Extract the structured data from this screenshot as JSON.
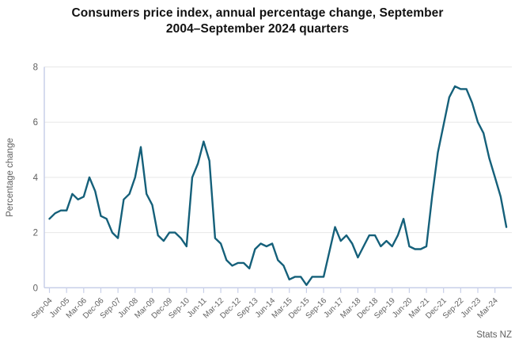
{
  "title": {
    "line1": "Consumers price index, annual percentage change, September",
    "line2": "2004–September 2024 quarters",
    "full": "Consumers price index, annual percentage change, September 2004–September 2024 quarters"
  },
  "source": "Stats NZ",
  "colors": {
    "line": "#15607a",
    "gridline": "#e7e7e7",
    "axis": "#c8cfe8",
    "tick_text": "#606060",
    "title_text": "#111111"
  },
  "chart_data": {
    "type": "line",
    "title": "Consumers price index, annual percentage change, September 2004–September 2024 quarters",
    "xlabel": "",
    "ylabel": "Percentage change",
    "ylim": [
      0,
      8
    ],
    "yticks": [
      0,
      2,
      4,
      6,
      8
    ],
    "grid": "horizontal",
    "legend": "none",
    "x_frequency": "quarterly",
    "x_start": "Sep-04",
    "x_end": "Sep-24",
    "points_per_tick": 3,
    "x_tick_labels": [
      "Sep-04",
      "Jun-05",
      "Mar-06",
      "Dec-06",
      "Sep-07",
      "Jun-08",
      "Mar-09",
      "Dec-09",
      "Sep-10",
      "Jun-11",
      "Mar-12",
      "Dec-12",
      "Sep-13",
      "Jun-14",
      "Mar-15",
      "Dec-15",
      "Sep-16",
      "Jun-17",
      "Mar-18",
      "Dec-18",
      "Sep-19",
      "Jun-20",
      "Mar-21",
      "Dec-21",
      "Sep-22",
      "Jun-23",
      "Mar-24"
    ],
    "values": [
      2.5,
      2.7,
      2.8,
      2.8,
      3.4,
      3.2,
      3.3,
      4.0,
      3.5,
      2.6,
      2.5,
      2.0,
      1.8,
      3.2,
      3.4,
      4.0,
      5.1,
      3.4,
      3.0,
      1.9,
      1.7,
      2.0,
      2.0,
      1.8,
      1.5,
      4.0,
      4.5,
      5.3,
      4.6,
      1.8,
      1.6,
      1.0,
      0.8,
      0.9,
      0.9,
      0.7,
      1.4,
      1.6,
      1.5,
      1.6,
      1.0,
      0.8,
      0.3,
      0.4,
      0.4,
      0.1,
      0.4,
      0.4,
      0.4,
      1.3,
      2.2,
      1.7,
      1.9,
      1.6,
      1.1,
      1.5,
      1.9,
      1.9,
      1.5,
      1.7,
      1.5,
      1.9,
      2.5,
      1.5,
      1.4,
      1.4,
      1.5,
      3.3,
      4.9,
      5.9,
      6.9,
      7.3,
      7.2,
      7.2,
      6.7,
      6.0,
      5.6,
      4.7,
      4.0,
      3.3,
      2.2
    ]
  }
}
